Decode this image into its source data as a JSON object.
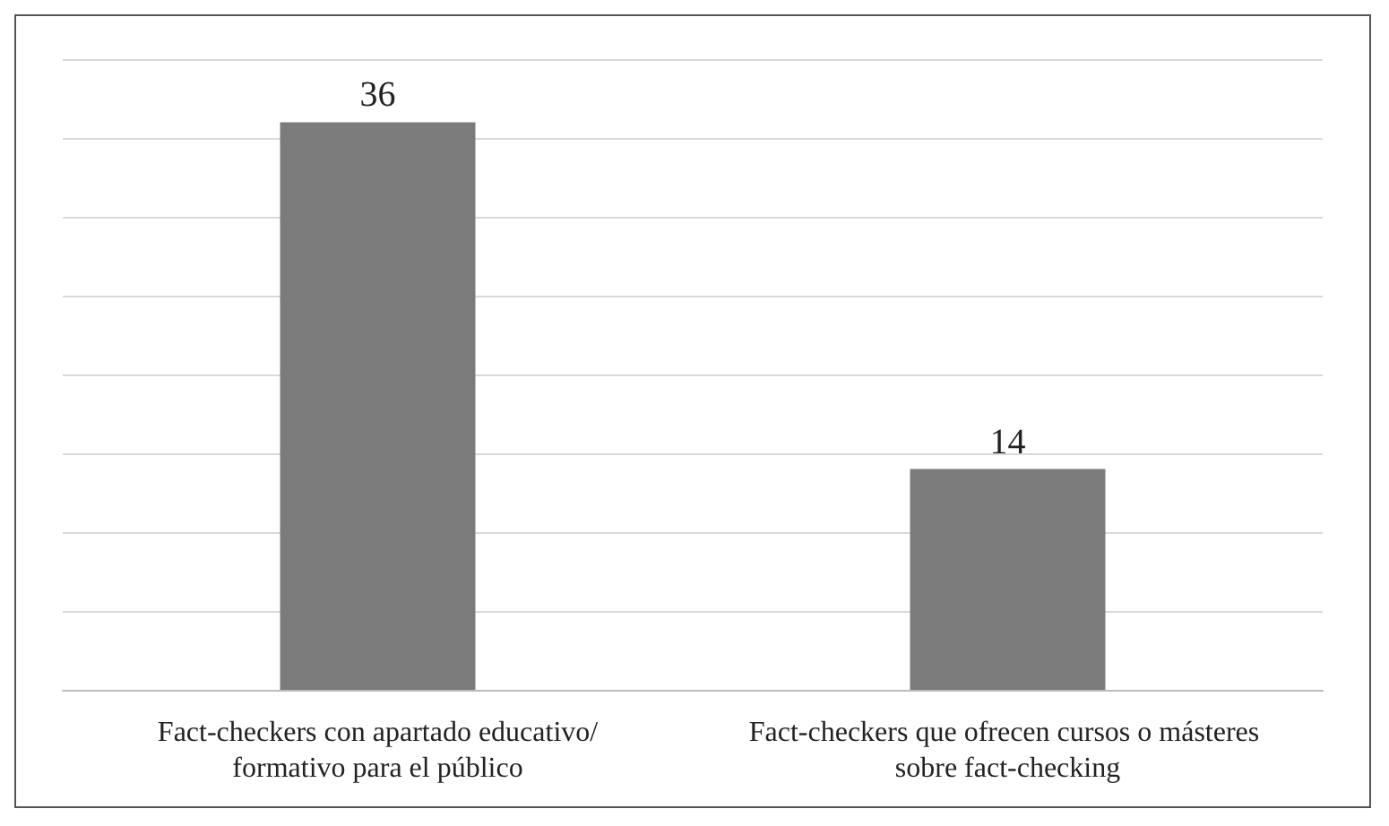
{
  "chart_data": {
    "type": "bar",
    "categories": [
      "Fact-checkers con apartado educativo/formativo para el público",
      "Fact-checkers que ofrecen cursos o másteres sobre fact-checking"
    ],
    "values": [
      36,
      14
    ],
    "color": "#7b7b7b",
    "ylim": [
      0,
      40
    ],
    "yticks": [
      {
        "value": 0,
        "label": null
      },
      {
        "value": 5,
        "label": null
      },
      {
        "value": 10,
        "label": null
      },
      {
        "value": 15,
        "label": null
      },
      {
        "value": 20,
        "label": null
      },
      {
        "value": 25,
        "label": null
      },
      {
        "value": 30,
        "label": null
      },
      {
        "value": 35,
        "label": null
      },
      {
        "value": 40,
        "label": null
      }
    ],
    "tick_labels": "x",
    "grid": "y",
    "data_labels": true
  }
}
